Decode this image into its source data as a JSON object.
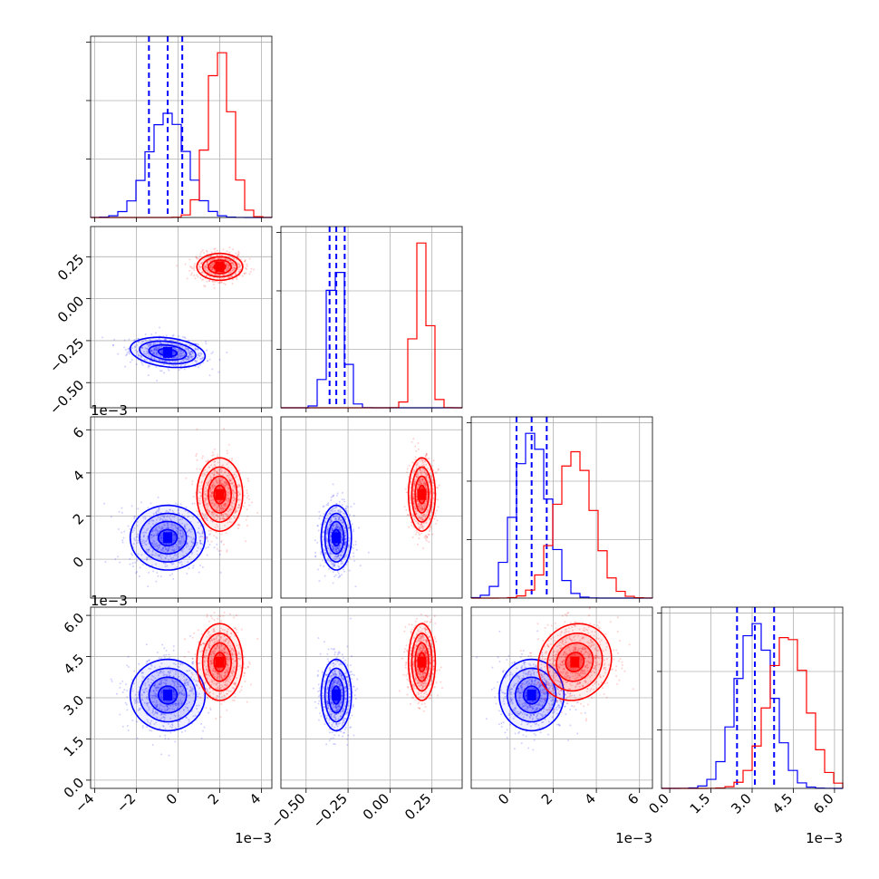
{
  "chart_data": {
    "type": "corner",
    "title": "",
    "parameters": [
      {
        "range": [
          -4.2,
          4.5
        ],
        "ticks": [
          -4,
          -2,
          0,
          2,
          4
        ],
        "tick_labels": [
          "−4",
          "−2",
          "0",
          "2",
          "4"
        ],
        "offset": "1e−3"
      },
      {
        "range": [
          -0.65,
          0.43
        ],
        "ticks": [
          -0.5,
          -0.25,
          0.0,
          0.25
        ],
        "tick_labels": [
          "−0.50",
          "−0.25",
          "0.00",
          "0.25"
        ],
        "offset": ""
      },
      {
        "range": [
          -1.8,
          6.6
        ],
        "ticks": [
          0,
          2,
          4,
          6
        ],
        "tick_labels": [
          "0",
          "2",
          "4",
          "6"
        ],
        "offset": "1e−3"
      },
      {
        "range": [
          -0.3,
          6.3
        ],
        "ticks": [
          0.0,
          1.5,
          3.0,
          4.5,
          6.0
        ],
        "tick_labels": [
          "0.0",
          "1.5",
          "3.0",
          "4.5",
          "6.0"
        ],
        "offset": "1e−3"
      }
    ],
    "series": [
      {
        "name": "",
        "color": "#0000ff",
        "mean": [
          -0.5,
          -0.32,
          1.0,
          3.1
        ],
        "std": [
          0.9,
          0.045,
          0.75,
          0.65
        ],
        "corr": [
          [
            1,
            -0.25,
            0,
            0
          ],
          [
            -0.25,
            1,
            0,
            0
          ],
          [
            0,
            0,
            1,
            0
          ],
          [
            0,
            0,
            0,
            1
          ]
        ],
        "quantiles": [
          [
            -1.4,
            -0.5,
            0.2
          ],
          [
            -0.36,
            -0.32,
            -0.27
          ],
          [
            0.3,
            1.0,
            1.7
          ],
          [
            2.45,
            3.1,
            3.8
          ]
        ]
      },
      {
        "name": "",
        "color": "#ff0000",
        "mean": [
          2.0,
          0.19,
          3.0,
          4.3
        ],
        "std": [
          0.55,
          0.04,
          0.85,
          0.7
        ],
        "corr": [
          [
            1,
            0,
            0,
            0
          ],
          [
            0,
            1,
            0,
            0
          ],
          [
            0,
            0,
            1,
            0.1
          ],
          [
            0,
            0,
            0.1,
            1
          ]
        ]
      }
    ]
  }
}
